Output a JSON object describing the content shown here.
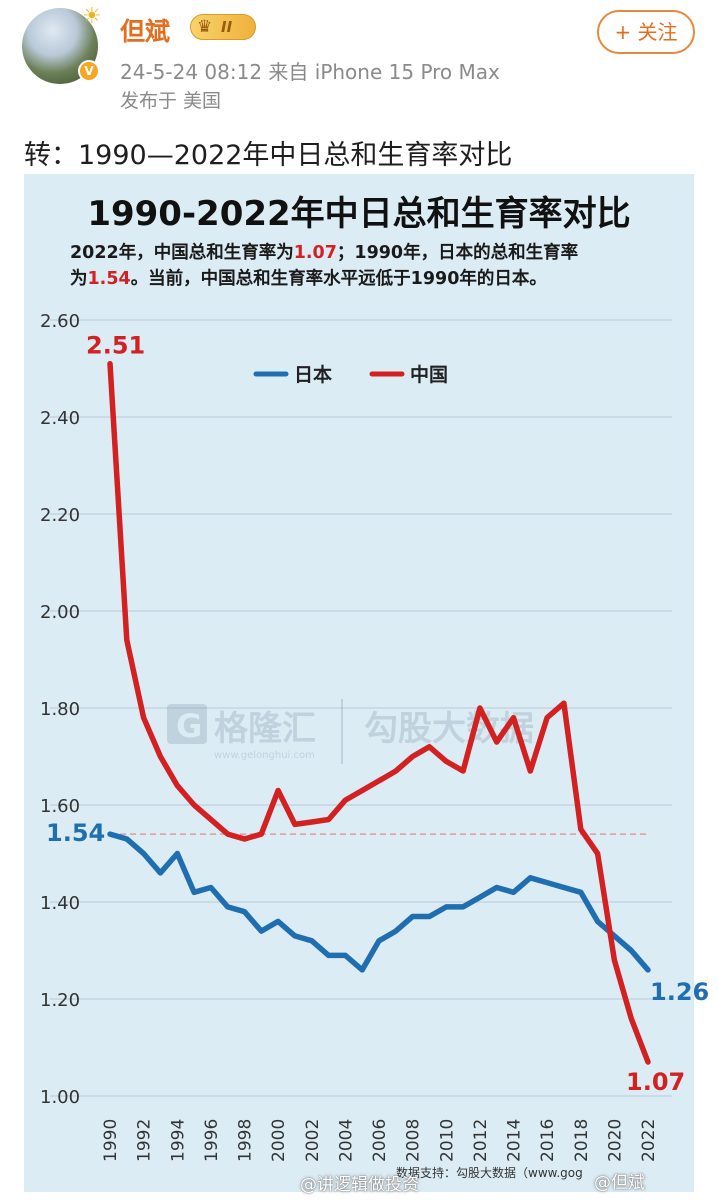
{
  "post": {
    "username": "但斌",
    "vip_level": "II",
    "verified_mark": "V",
    "meta": "24-5-24 08:12  来自 iPhone 15 Pro Max",
    "location": "发布于 美国",
    "follow_label": "+ 关注",
    "text": "转：1990—2022年中日总和生育率对比"
  },
  "infographic": {
    "title": "1990-2022年中日总和生育率对比",
    "subtitle_parts": [
      "2022年，中国总和生育率为",
      "1.07",
      "；1990年，日本的总和生育率",
      "为",
      "1.54",
      "。当前，中国总和生育率水平远低于1990年的日本。"
    ],
    "watermark_left": "格隆汇",
    "watermark_left_small": "www.gelonghui.com",
    "watermark_right": "勾股大数据",
    "source_note": "数据支持：勾股大数据（www.gog"
  },
  "footer": {
    "watermark": "@讲逻辑做投资",
    "watermark2": "@但斌"
  },
  "colors": {
    "japan": "#1f6fb0",
    "china": "#d32020",
    "background": "#dcecf5"
  },
  "chart_data": {
    "type": "line",
    "title": "1990-2022年中日总和生育率对比",
    "x": [
      1990,
      1991,
      1992,
      1993,
      1994,
      1995,
      1996,
      1997,
      1998,
      1999,
      2000,
      2001,
      2002,
      2003,
      2004,
      2005,
      2006,
      2007,
      2008,
      2009,
      2010,
      2011,
      2012,
      2013,
      2014,
      2015,
      2016,
      2017,
      2018,
      2019,
      2020,
      2021,
      2022
    ],
    "x_tick_labels": [
      "1990",
      "1992",
      "1994",
      "1996",
      "1998",
      "2000",
      "2002",
      "2004",
      "2006",
      "2008",
      "2010",
      "2012",
      "2014",
      "2016",
      "2018",
      "2020",
      "2022"
    ],
    "y_tick_labels": [
      "1.00",
      "1.20",
      "1.40",
      "1.60",
      "1.80",
      "2.00",
      "2.20",
      "2.40",
      "2.60"
    ],
    "ylim": [
      1.0,
      2.6
    ],
    "grid": true,
    "legend_position": "top-center",
    "reference_line": 1.54,
    "series": [
      {
        "name": "日本",
        "color": "#1f6fb0",
        "values": [
          1.54,
          1.53,
          1.5,
          1.46,
          1.5,
          1.42,
          1.43,
          1.39,
          1.38,
          1.34,
          1.36,
          1.33,
          1.32,
          1.29,
          1.29,
          1.26,
          1.32,
          1.34,
          1.37,
          1.37,
          1.39,
          1.39,
          1.41,
          1.43,
          1.42,
          1.45,
          1.44,
          1.43,
          1.42,
          1.36,
          1.33,
          1.3,
          1.26
        ]
      },
      {
        "name": "中国",
        "color": "#d32020",
        "values": [
          2.51,
          1.94,
          1.78,
          1.7,
          1.64,
          1.6,
          1.57,
          1.54,
          1.53,
          1.54,
          1.63,
          1.56,
          1.565,
          1.57,
          1.61,
          1.63,
          1.65,
          1.67,
          1.7,
          1.72,
          1.69,
          1.67,
          1.8,
          1.73,
          1.78,
          1.67,
          1.78,
          1.81,
          1.55,
          1.5,
          1.28,
          1.16,
          1.07
        ]
      }
    ],
    "annotations": [
      {
        "label": "2.51",
        "series": "中国",
        "x": 1990
      },
      {
        "label": "1.54",
        "series": "日本",
        "x": 1990
      },
      {
        "label": "1.26",
        "series": "日本",
        "x": 2022
      },
      {
        "label": "1.07",
        "series": "中国",
        "x": 2022
      }
    ]
  }
}
